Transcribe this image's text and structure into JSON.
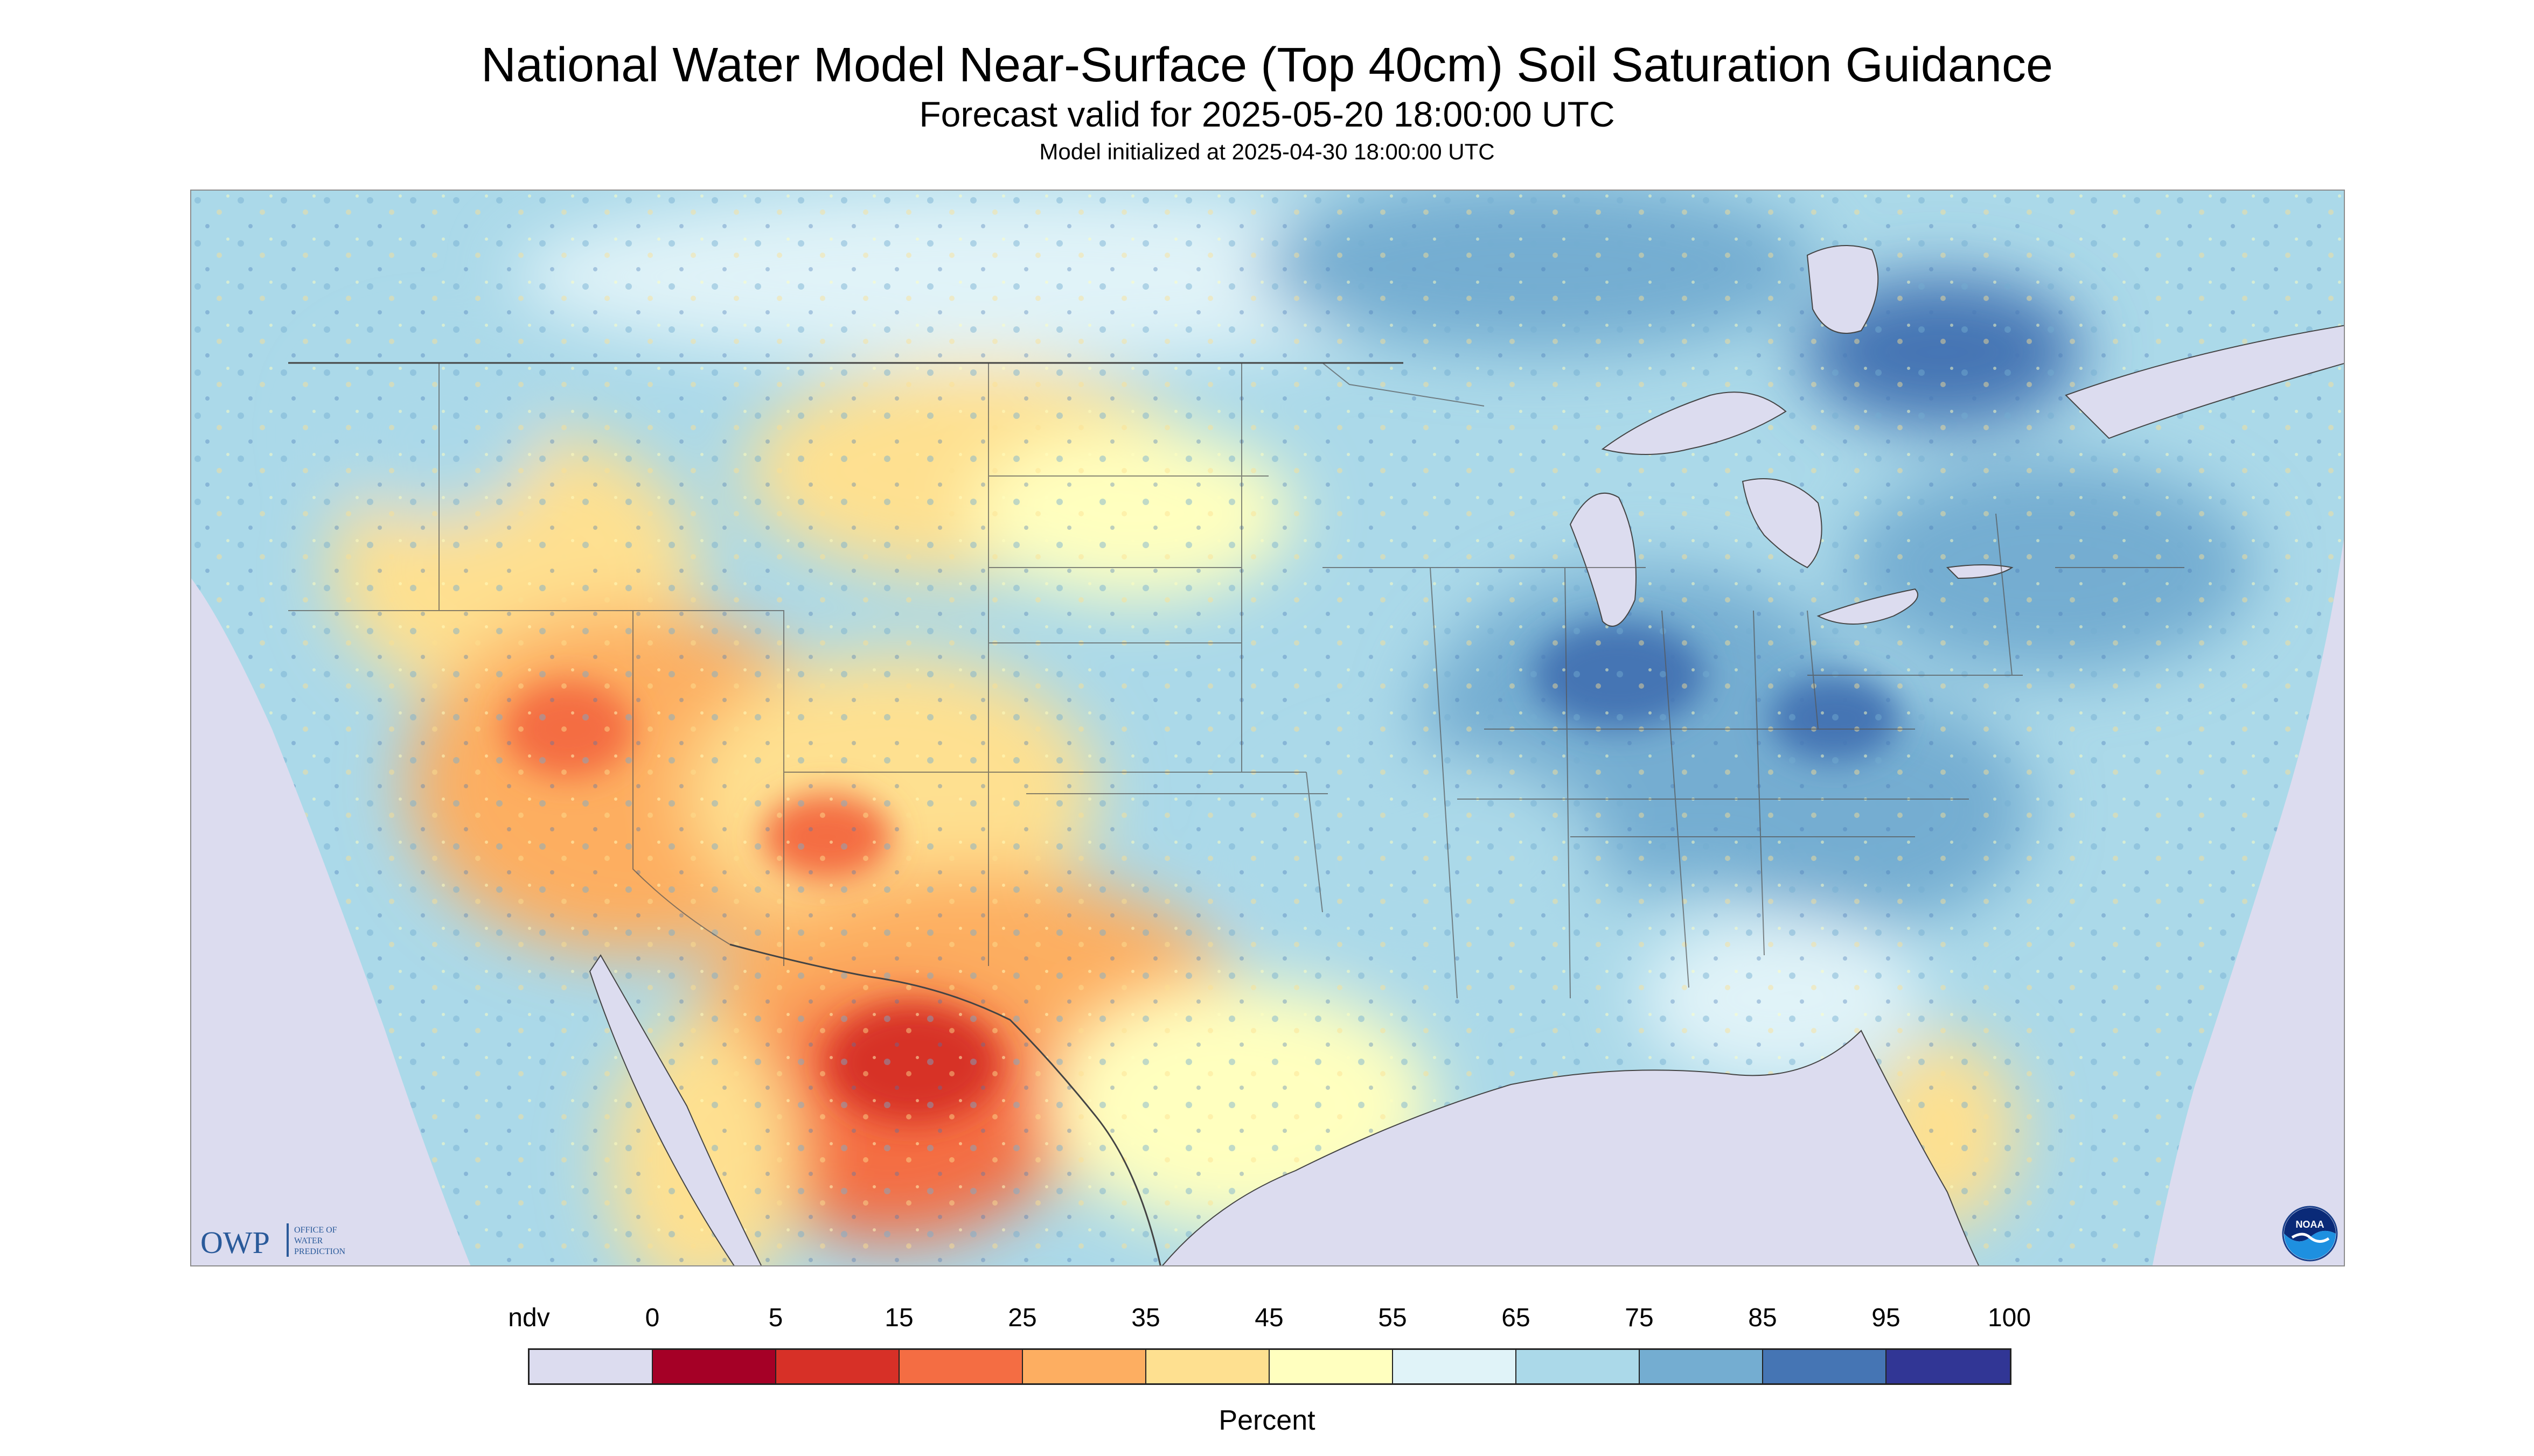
{
  "header": {
    "title": "National Water Model Near-Surface (Top 40cm) Soil Saturation Guidance",
    "subtitle": "Forecast valid for 2025-05-20 18:00:00 UTC",
    "init_line": "Model initialized at 2025-04-30 18:00:00 UTC"
  },
  "map": {
    "region": "CONUS",
    "variable": "Near-Surface (Top 40cm) Soil Saturation",
    "nodata_color": "#dcdcef",
    "water_color": "#dcdcef",
    "regions": [
      {
        "area": "desert-southwest-mexico",
        "class": "5-15"
      },
      {
        "area": "arizona-new-mexico",
        "class": "25-35"
      },
      {
        "area": "great-basin",
        "class": "35-45"
      },
      {
        "area": "south-texas",
        "class": "45-55"
      },
      {
        "area": "northern-plains",
        "class": "45-55"
      },
      {
        "area": "pacific-northwest",
        "class": "65-75"
      },
      {
        "area": "ohio-valley",
        "class": "75-85"
      },
      {
        "area": "northeast",
        "class": "75-85"
      },
      {
        "area": "southeast",
        "class": "65-75"
      },
      {
        "area": "florida",
        "class": "35-45"
      },
      {
        "area": "canada-hudson-area",
        "class": "85-95"
      }
    ]
  },
  "logos": {
    "owp": {
      "mark": "OWP",
      "text": [
        "OFFICE OF",
        "WATER",
        "PREDICTION"
      ]
    },
    "noaa": {
      "mark": "NOAA"
    }
  },
  "legend": {
    "nodata_label": "ndv",
    "tick_labels": [
      "0",
      "5",
      "15",
      "25",
      "35",
      "45",
      "55",
      "65",
      "75",
      "85",
      "95",
      "100"
    ],
    "colors": [
      "#dcdcef",
      "#a50026",
      "#d73027",
      "#f46d43",
      "#fdae61",
      "#fee090",
      "#ffffbf",
      "#e0f3f8",
      "#abd9e9",
      "#74add1",
      "#4575b4",
      "#313695"
    ],
    "unit": "Percent"
  }
}
